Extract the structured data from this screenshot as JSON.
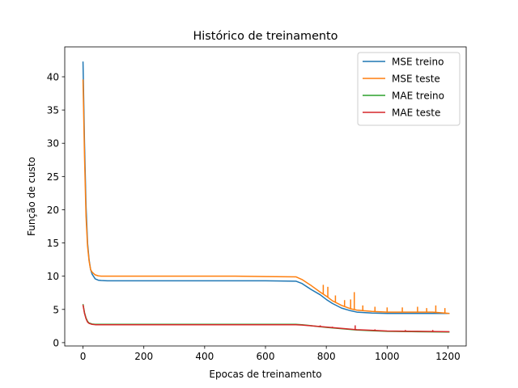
{
  "chart_data": {
    "type": "line",
    "title": "Histórico de treinamento",
    "xlabel": "Epocas de treinamento",
    "ylabel": "Função de custo",
    "xlim": [
      -60,
      1260
    ],
    "ylim": [
      -0.5,
      44.5
    ],
    "xticks": [
      0,
      200,
      400,
      600,
      800,
      1000,
      1200
    ],
    "yticks": [
      0,
      5,
      10,
      15,
      20,
      25,
      30,
      35,
      40
    ],
    "grid": false,
    "legend_position": "top-right",
    "series": [
      {
        "name": "MSE treino",
        "color": "#1f77b4",
        "x": [
          0,
          5,
          10,
          15,
          20,
          25,
          30,
          40,
          50,
          60,
          80,
          100,
          200,
          300,
          400,
          500,
          600,
          700,
          720,
          750,
          780,
          800,
          820,
          850,
          880,
          900,
          950,
          1000,
          1050,
          1100,
          1150,
          1205
        ],
        "y": [
          42.3,
          30.0,
          20.5,
          15.0,
          12.5,
          11.0,
          10.3,
          9.6,
          9.4,
          9.35,
          9.3,
          9.3,
          9.3,
          9.3,
          9.3,
          9.3,
          9.3,
          9.25,
          8.9,
          8.0,
          7.2,
          6.5,
          5.9,
          5.2,
          4.8,
          4.6,
          4.45,
          4.4,
          4.4,
          4.4,
          4.4,
          4.4
        ]
      },
      {
        "name": "MSE teste",
        "color": "#ff7f0e",
        "x": [
          0,
          5,
          10,
          15,
          20,
          25,
          30,
          40,
          50,
          60,
          80,
          100,
          200,
          300,
          400,
          500,
          600,
          700,
          720,
          750,
          780,
          800,
          820,
          850,
          880,
          900,
          950,
          1000,
          1050,
          1100,
          1150,
          1205
        ],
        "y": [
          39.6,
          28.0,
          19.0,
          14.5,
          12.3,
          11.0,
          10.6,
          10.2,
          10.05,
          10.0,
          10.0,
          10.0,
          10.0,
          10.0,
          10.0,
          10.0,
          9.95,
          9.9,
          9.5,
          8.6,
          7.6,
          7.0,
          6.3,
          5.6,
          5.1,
          4.9,
          4.7,
          4.6,
          4.6,
          4.6,
          4.6,
          4.4
        ],
        "noise": [
          {
            "x": 760,
            "y": 8.3
          },
          {
            "x": 790,
            "y": 8.7
          },
          {
            "x": 805,
            "y": 8.4
          },
          {
            "x": 830,
            "y": 7.1
          },
          {
            "x": 860,
            "y": 6.4
          },
          {
            "x": 880,
            "y": 6.5
          },
          {
            "x": 892,
            "y": 7.6
          },
          {
            "x": 920,
            "y": 5.6
          },
          {
            "x": 960,
            "y": 5.4
          },
          {
            "x": 1000,
            "y": 5.3
          },
          {
            "x": 1050,
            "y": 5.3
          },
          {
            "x": 1100,
            "y": 5.4
          },
          {
            "x": 1130,
            "y": 5.2
          },
          {
            "x": 1160,
            "y": 5.6
          },
          {
            "x": 1190,
            "y": 5.2
          }
        ]
      },
      {
        "name": "MAE treino",
        "color": "#2ca02c",
        "x": [
          0,
          5,
          10,
          15,
          20,
          30,
          40,
          60,
          100,
          200,
          300,
          400,
          500,
          600,
          700,
          720,
          760,
          800,
          850,
          900,
          950,
          1000,
          1100,
          1205
        ],
        "y": [
          5.8,
          4.5,
          3.7,
          3.2,
          2.95,
          2.8,
          2.75,
          2.75,
          2.75,
          2.75,
          2.75,
          2.75,
          2.75,
          2.75,
          2.75,
          2.7,
          2.5,
          2.3,
          2.1,
          1.9,
          1.8,
          1.7,
          1.65,
          1.6
        ]
      },
      {
        "name": "MAE teste",
        "color": "#d62728",
        "x": [
          0,
          5,
          10,
          15,
          20,
          30,
          40,
          60,
          100,
          200,
          300,
          400,
          500,
          600,
          700,
          720,
          760,
          800,
          850,
          900,
          950,
          1000,
          1100,
          1205
        ],
        "y": [
          5.7,
          4.4,
          3.6,
          3.1,
          2.9,
          2.75,
          2.7,
          2.7,
          2.7,
          2.7,
          2.7,
          2.7,
          2.7,
          2.7,
          2.7,
          2.65,
          2.5,
          2.35,
          2.15,
          1.95,
          1.85,
          1.75,
          1.7,
          1.65
        ],
        "noise": [
          {
            "x": 780,
            "y": 2.6
          },
          {
            "x": 820,
            "y": 2.4
          },
          {
            "x": 895,
            "y": 2.6
          },
          {
            "x": 960,
            "y": 2.0
          },
          {
            "x": 1060,
            "y": 1.9
          },
          {
            "x": 1150,
            "y": 1.9
          }
        ]
      }
    ]
  }
}
